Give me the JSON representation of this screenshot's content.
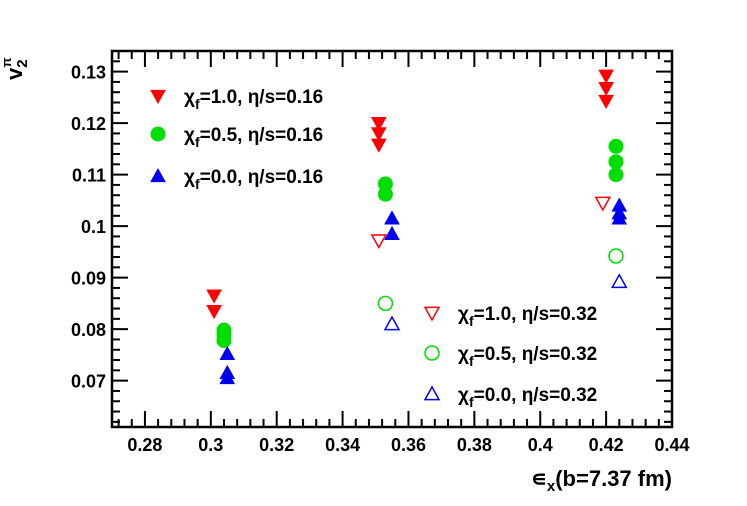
{
  "chart_data": {
    "type": "scatter",
    "xlabel": "∊x(b=7.37 fm)",
    "ylabel": "v2π",
    "xlim": [
      0.27,
      0.44
    ],
    "ylim": [
      0.061,
      0.134
    ],
    "x_ticks": [
      "0.28",
      "0.3",
      "0.32",
      "0.34",
      "0.36",
      "0.38",
      "0.4",
      "0.42",
      "0.44"
    ],
    "y_ticks": [
      "0.07",
      "0.08",
      "0.09",
      "0.1",
      "0.11",
      "0.12",
      "0.13"
    ],
    "legend_placement": [
      "top-left",
      "bottom-right"
    ],
    "series": [
      {
        "name": "χf=1.0, η/s=0.16",
        "marker": "triangle-down",
        "filled": true,
        "color": "#ff0000",
        "x": [
          0.301,
          0.301,
          0.351,
          0.351,
          0.351,
          0.42,
          0.42,
          0.42
        ],
        "y": [
          0.0865,
          0.0835,
          0.12,
          0.118,
          0.1158,
          0.1292,
          0.1268,
          0.1243
        ]
      },
      {
        "name": "χf=0.5, η/s=0.16",
        "marker": "circle",
        "filled": true,
        "color": "#00dd00",
        "x": [
          0.304,
          0.304,
          0.304,
          0.353,
          0.353,
          0.423,
          0.423,
          0.423
        ],
        "y": [
          0.0798,
          0.0788,
          0.0778,
          0.1082,
          0.1062,
          0.1155,
          0.1125,
          0.11
        ]
      },
      {
        "name": "χf=0.0, η/s=0.16",
        "marker": "triangle-up",
        "filled": true,
        "color": "#0000ee",
        "x": [
          0.305,
          0.305,
          0.305,
          0.355,
          0.355,
          0.424,
          0.424,
          0.424
        ],
        "y": [
          0.0752,
          0.0715,
          0.0705,
          0.1015,
          0.0985,
          0.104,
          0.1025,
          0.1015
        ]
      },
      {
        "name": "χf=1.0, η/s=0.32",
        "marker": "triangle-down",
        "filled": false,
        "color": "#ff0000",
        "x": [
          0.351,
          0.419
        ],
        "y": [
          0.0972,
          0.1045
        ]
      },
      {
        "name": "χf=0.5, η/s=0.32",
        "marker": "circle",
        "filled": false,
        "color": "#00dd00",
        "x": [
          0.353,
          0.423
        ],
        "y": [
          0.085,
          0.0942
        ]
      },
      {
        "name": "χf=0.0, η/s=0.32",
        "marker": "triangle-up",
        "filled": false,
        "color": "#0000ee",
        "x": [
          0.355,
          0.424
        ],
        "y": [
          0.081,
          0.0892
        ]
      }
    ]
  }
}
